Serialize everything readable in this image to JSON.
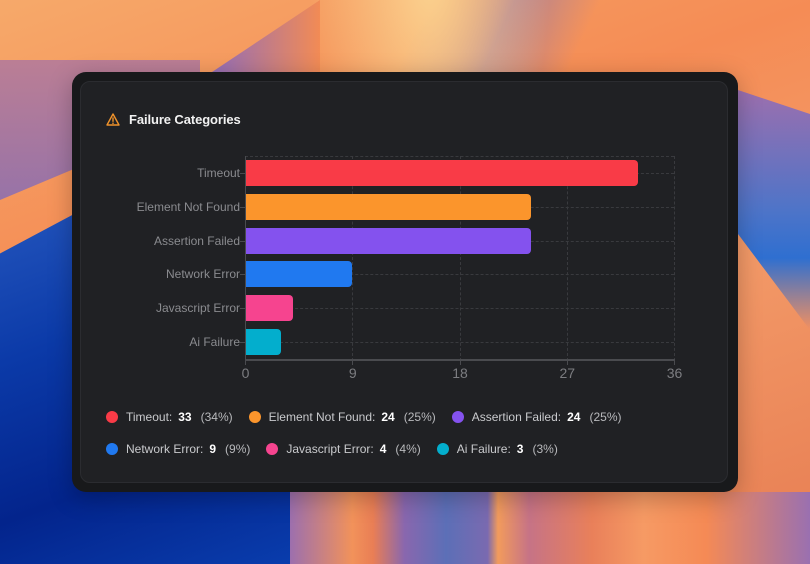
{
  "card": {
    "title": "Failure Categories",
    "icon": "warning-triangle-icon",
    "icon_color": "#f0932b"
  },
  "chart_data": {
    "type": "bar",
    "orientation": "horizontal",
    "title": "Failure Categories",
    "categories": [
      "Timeout",
      "Element Not Found",
      "Assertion Failed",
      "Network Error",
      "Javascript Error",
      "Ai Failure"
    ],
    "values": [
      33,
      24,
      24,
      9,
      4,
      3
    ],
    "percentages": [
      "34%",
      "25%",
      "25%",
      "9%",
      "4%",
      "3%"
    ],
    "colors": [
      "#f93b47",
      "#fb952c",
      "#8452ee",
      "#2079f0",
      "#f6448f",
      "#03aecd"
    ],
    "xlabel": "",
    "ylabel": "",
    "xlim": [
      0,
      36
    ],
    "x_ticks": [
      "0",
      "9",
      "18",
      "27",
      "36"
    ],
    "grid": true,
    "legend_position": "bottom"
  },
  "legend": [
    {
      "label": "Timeout:",
      "value": "33",
      "pct": "(34%)",
      "color": "#f93b47"
    },
    {
      "label": "Element Not Found:",
      "value": "24",
      "pct": "(25%)",
      "color": "#fb952c"
    },
    {
      "label": "Assertion Failed:",
      "value": "24",
      "pct": "(25%)",
      "color": "#8452ee"
    },
    {
      "label": "Network Error:",
      "value": "9",
      "pct": "(9%)",
      "color": "#2079f0"
    },
    {
      "label": "Javascript Error:",
      "value": "4",
      "pct": "(4%)",
      "color": "#f6448f"
    },
    {
      "label": "Ai Failure:",
      "value": "3",
      "pct": "(3%)",
      "color": "#03aecd"
    }
  ]
}
